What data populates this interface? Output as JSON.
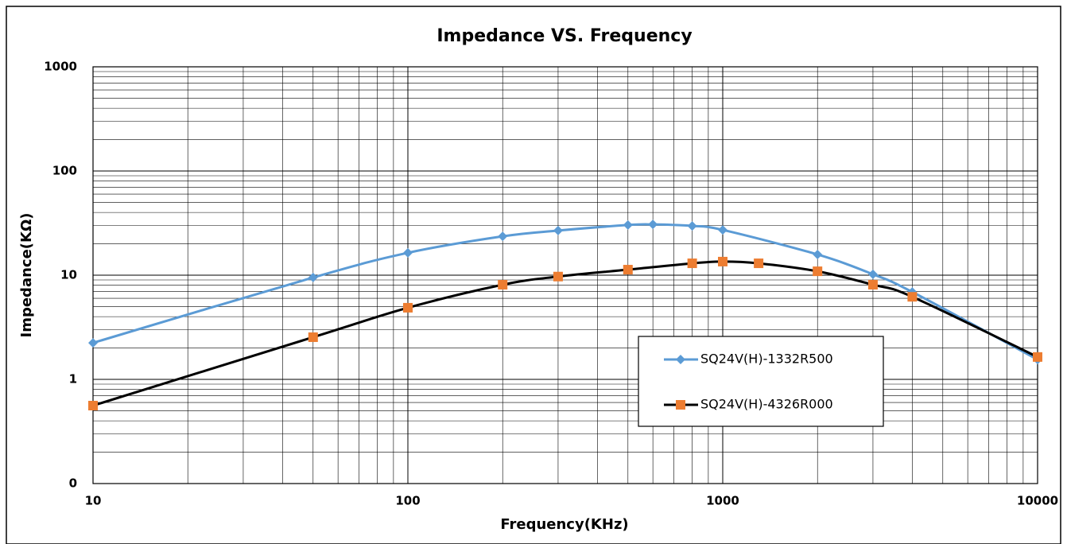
{
  "chart_data": {
    "type": "line",
    "title": "Impedance VS. Frequency",
    "x_label": "Frequency(KHz)",
    "y_label": "Impedance(KΩ)",
    "x_log": true,
    "y_log": true,
    "grid": true,
    "minor_grid": true,
    "legend_position": "right",
    "xlim": [
      10,
      10000
    ],
    "xticks": [
      10,
      100,
      1000,
      10000
    ],
    "ylim": [
      0.1,
      1000
    ],
    "yticks": [
      {
        "value": 0.1,
        "label": "0"
      },
      1,
      10,
      100,
      1000
    ],
    "series": [
      {
        "name": "SQ24V(H)-1332R500",
        "color": "#5b9bd5",
        "line_color": "#5b9bd5",
        "marker": "diamond",
        "x": [
          10,
          50,
          100,
          200,
          300,
          500,
          600,
          800,
          1000,
          2000,
          3000,
          4000,
          10000
        ],
        "values": [
          2.24,
          9.5,
          16.4,
          23.6,
          26.8,
          30.3,
          30.7,
          29.7,
          27.2,
          15.8,
          10.2,
          6.9,
          1.55
        ]
      },
      {
        "name": "SQ24V(H)-4326R000",
        "color": "#ed7d31",
        "line_color": "#000000",
        "marker": "square",
        "x": [
          10,
          50,
          100,
          200,
          300,
          500,
          800,
          1000,
          1300,
          2000,
          3000,
          4000,
          10000
        ],
        "values": [
          0.56,
          2.54,
          4.87,
          8.1,
          9.7,
          11.3,
          13.0,
          13.5,
          13.0,
          10.9,
          8.1,
          6.2,
          1.64
        ]
      }
    ]
  }
}
